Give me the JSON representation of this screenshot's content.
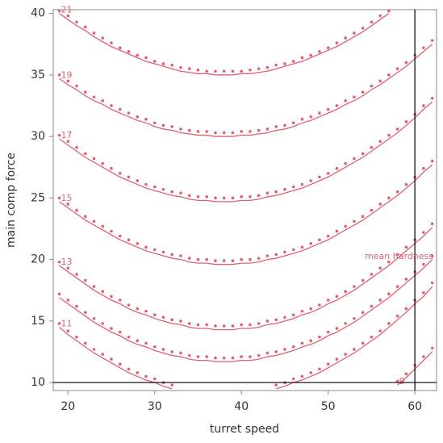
{
  "chart_data": {
    "type": "contour",
    "x_label": "turret speed",
    "y_label": "main comp force",
    "annotation": "mean hardness",
    "xlim": [
      18.3,
      62.5
    ],
    "ylim": [
      9.35,
      40.3
    ],
    "xticks": [
      20,
      30,
      40,
      50,
      60
    ],
    "yticks": [
      10,
      15,
      20,
      25,
      30,
      35,
      40
    ],
    "vlines": [
      60
    ],
    "hlines": [
      10
    ],
    "x": [
      19,
      20,
      21,
      22,
      23,
      24,
      25,
      26,
      27,
      28,
      29,
      30,
      31,
      32,
      33,
      34,
      35,
      36,
      37,
      38,
      39,
      40,
      41,
      42,
      43,
      44,
      45,
      46,
      47,
      48,
      49,
      50,
      51,
      52,
      53,
      54,
      55,
      56,
      57,
      58,
      59,
      60,
      61,
      62
    ],
    "series": [
      {
        "name": "21",
        "color": "#e06070",
        "values": [
          40.0,
          39.5,
          39.0,
          38.6,
          38.1,
          37.7,
          37.3,
          37.0,
          36.7,
          36.4,
          36.1,
          35.9,
          35.7,
          35.5,
          35.3,
          35.2,
          35.1,
          35.1,
          35.0,
          35.0,
          35.0,
          35.1,
          35.1,
          35.2,
          35.3,
          35.5,
          35.7,
          35.9,
          36.1,
          36.4,
          36.7,
          37.0,
          37.3,
          37.7,
          38.1,
          38.5,
          39.0,
          39.5,
          40.0,
          null,
          null,
          null,
          null,
          null
        ],
        "dot_values": [
          40.2,
          39.8,
          39.3,
          38.9,
          38.4,
          38.0,
          37.6,
          37.2,
          36.9,
          36.6,
          36.4,
          36.1,
          35.9,
          35.8,
          35.6,
          35.5,
          35.4,
          35.3,
          35.3,
          35.3,
          35.3,
          35.3,
          35.4,
          35.5,
          35.6,
          35.8,
          35.9,
          36.1,
          36.4,
          36.6,
          36.9,
          37.2,
          37.6,
          38.0,
          38.4,
          38.8,
          39.3,
          39.8,
          40.2,
          null,
          null,
          null,
          null,
          null
        ]
      },
      {
        "name": "19",
        "color": "#e06070",
        "values": [
          34.7,
          34.2,
          33.8,
          33.3,
          32.9,
          32.6,
          32.2,
          31.9,
          31.6,
          31.3,
          31.1,
          30.8,
          30.6,
          30.5,
          30.3,
          30.2,
          30.1,
          30.1,
          30.0,
          30.0,
          30.0,
          30.1,
          30.1,
          30.2,
          30.3,
          30.5,
          30.6,
          30.8,
          31.1,
          31.3,
          31.6,
          31.9,
          32.2,
          32.6,
          32.9,
          33.3,
          33.8,
          34.2,
          34.7,
          35.2,
          35.7,
          36.3,
          36.9,
          37.5
        ],
        "dot_values": [
          35.0,
          34.5,
          34.1,
          33.6,
          33.2,
          32.9,
          32.5,
          32.2,
          31.9,
          31.6,
          31.4,
          31.1,
          30.9,
          30.8,
          30.6,
          30.5,
          30.4,
          30.4,
          30.3,
          30.3,
          30.3,
          30.4,
          30.4,
          30.5,
          30.6,
          30.8,
          30.9,
          31.1,
          31.4,
          31.6,
          31.9,
          32.2,
          32.5,
          32.9,
          33.2,
          33.6,
          34.1,
          34.5,
          35.0,
          35.5,
          36.0,
          36.6,
          37.2,
          37.8
        ]
      },
      {
        "name": "17",
        "color": "#e06070",
        "values": [
          29.8,
          29.3,
          28.8,
          28.3,
          27.9,
          27.5,
          27.1,
          26.7,
          26.4,
          26.1,
          25.8,
          25.6,
          25.4,
          25.2,
          25.1,
          24.9,
          24.8,
          24.8,
          24.7,
          24.7,
          24.7,
          24.8,
          24.8,
          24.9,
          25.1,
          25.2,
          25.4,
          25.6,
          25.8,
          26.1,
          26.4,
          26.7,
          27.1,
          27.5,
          27.9,
          28.3,
          28.8,
          29.3,
          29.8,
          30.3,
          30.9,
          31.5,
          32.2,
          32.8
        ],
        "dot_values": [
          30.1,
          29.6,
          29.1,
          28.6,
          28.2,
          27.8,
          27.4,
          27.0,
          26.7,
          26.4,
          26.1,
          25.9,
          25.7,
          25.5,
          25.4,
          25.2,
          25.1,
          25.1,
          25.0,
          25.0,
          25.0,
          25.1,
          25.1,
          25.2,
          25.4,
          25.5,
          25.7,
          25.9,
          26.1,
          26.4,
          26.7,
          27.0,
          27.4,
          27.8,
          28.2,
          28.6,
          29.1,
          29.6,
          30.1,
          30.6,
          31.2,
          31.8,
          32.5,
          33.1
        ]
      },
      {
        "name": "15",
        "color": "#e06070",
        "values": [
          24.7,
          24.2,
          23.7,
          23.2,
          22.8,
          22.4,
          22.0,
          21.6,
          21.3,
          21.0,
          20.7,
          20.5,
          20.3,
          20.1,
          20.0,
          19.8,
          19.7,
          19.7,
          19.6,
          19.6,
          19.6,
          19.7,
          19.7,
          19.8,
          20.0,
          20.1,
          20.3,
          20.5,
          20.7,
          21.0,
          21.3,
          21.6,
          22.0,
          22.4,
          22.8,
          23.2,
          23.7,
          24.2,
          24.7,
          25.2,
          25.8,
          26.4,
          27.1,
          27.7
        ],
        "dot_values": [
          25.0,
          24.5,
          24.0,
          23.5,
          23.1,
          22.7,
          22.3,
          21.9,
          21.6,
          21.3,
          21.0,
          20.8,
          20.6,
          20.4,
          20.3,
          20.1,
          20.0,
          20.0,
          19.9,
          19.9,
          19.9,
          20.0,
          20.0,
          20.1,
          20.3,
          20.4,
          20.6,
          20.8,
          21.0,
          21.3,
          21.6,
          21.9,
          22.3,
          22.7,
          23.1,
          23.5,
          24.0,
          24.5,
          25.0,
          25.5,
          26.1,
          26.7,
          27.4,
          28.0
        ]
      },
      {
        "name": "13",
        "color": "#e06070",
        "values": [
          19.5,
          19.0,
          18.5,
          18.0,
          17.5,
          17.1,
          16.7,
          16.4,
          16.0,
          15.7,
          15.5,
          15.2,
          15.0,
          14.8,
          14.7,
          14.5,
          14.4,
          14.4,
          14.3,
          14.3,
          14.3,
          14.4,
          14.4,
          14.5,
          14.7,
          14.8,
          15.0,
          15.2,
          15.5,
          15.7,
          16.0,
          16.4,
          16.7,
          17.1,
          17.5,
          18.0,
          18.5,
          19.0,
          19.5,
          20.1,
          20.7,
          21.3,
          21.9,
          22.6
        ],
        "dot_values": [
          19.8,
          19.3,
          18.8,
          18.3,
          17.8,
          17.4,
          17.0,
          16.7,
          16.3,
          16.0,
          15.8,
          15.5,
          15.3,
          15.1,
          15.0,
          14.8,
          14.7,
          14.7,
          14.6,
          14.6,
          14.6,
          14.7,
          14.7,
          14.8,
          15.0,
          15.1,
          15.3,
          15.5,
          15.8,
          16.0,
          16.3,
          16.7,
          17.0,
          17.4,
          17.8,
          18.3,
          18.8,
          19.3,
          19.8,
          20.4,
          21.0,
          21.6,
          22.2,
          22.9
        ]
      },
      {
        "color": "#e06070",
        "values": [
          16.9,
          16.4,
          15.9,
          15.4,
          14.9,
          14.5,
          14.1,
          13.8,
          13.4,
          13.1,
          12.9,
          12.6,
          12.4,
          12.2,
          12.1,
          11.9,
          11.8,
          11.8,
          11.7,
          11.7,
          11.7,
          11.8,
          11.8,
          11.9,
          12.1,
          12.2,
          12.4,
          12.6,
          12.9,
          13.1,
          13.4,
          13.8,
          14.1,
          14.5,
          14.9,
          15.4,
          15.9,
          16.4,
          16.9,
          17.5,
          18.1,
          18.7,
          19.3,
          20.0
        ],
        "dot_values": [
          17.2,
          16.7,
          16.2,
          15.7,
          15.2,
          14.8,
          14.4,
          14.1,
          13.7,
          13.4,
          13.2,
          12.9,
          12.7,
          12.5,
          12.4,
          12.2,
          12.1,
          12.1,
          12.0,
          12.0,
          12.0,
          12.1,
          12.1,
          12.2,
          12.4,
          12.5,
          12.7,
          12.9,
          13.2,
          13.4,
          13.7,
          14.1,
          14.4,
          14.8,
          15.2,
          15.7,
          16.2,
          16.7,
          17.2,
          17.8,
          18.4,
          19.0,
          19.6,
          20.3
        ]
      },
      {
        "name": "11",
        "color": "#e06070",
        "values": [
          14.5,
          13.9,
          13.4,
          12.9,
          12.4,
          12.0,
          11.6,
          11.2,
          10.8,
          10.5,
          10.2,
          10.0,
          9.7,
          9.5,
          null,
          null,
          null,
          null,
          null,
          null,
          null,
          null,
          null,
          null,
          null,
          9.5,
          9.7,
          10.0,
          10.2,
          10.5,
          10.8,
          11.2,
          11.6,
          12.0,
          12.4,
          12.9,
          13.4,
          13.9,
          14.5,
          15.1,
          15.7,
          16.4,
          17.0,
          17.8
        ],
        "dot_values": [
          14.8,
          14.2,
          13.7,
          13.2,
          12.7,
          12.3,
          11.9,
          11.5,
          11.1,
          10.8,
          10.5,
          10.3,
          10.0,
          9.8,
          null,
          null,
          null,
          null,
          null,
          null,
          null,
          null,
          null,
          null,
          null,
          9.8,
          10.0,
          10.3,
          10.5,
          10.8,
          11.1,
          11.5,
          11.9,
          12.3,
          12.7,
          13.2,
          13.7,
          14.2,
          14.8,
          15.4,
          16.0,
          16.7,
          17.3,
          18.1
        ]
      },
      {
        "name": "9",
        "color": "#e06070",
        "values": [
          null,
          null,
          null,
          null,
          null,
          null,
          null,
          null,
          null,
          null,
          null,
          null,
          null,
          null,
          null,
          null,
          null,
          null,
          null,
          null,
          null,
          null,
          null,
          null,
          null,
          null,
          null,
          null,
          null,
          null,
          null,
          null,
          null,
          null,
          null,
          null,
          null,
          null,
          null,
          9.8,
          10.4,
          11.1,
          11.8,
          12.5
        ],
        "dot_values": [
          null,
          null,
          null,
          null,
          null,
          null,
          null,
          null,
          null,
          null,
          null,
          null,
          null,
          null,
          null,
          null,
          null,
          null,
          null,
          null,
          null,
          null,
          null,
          null,
          null,
          null,
          null,
          null,
          null,
          null,
          null,
          null,
          null,
          null,
          null,
          null,
          null,
          null,
          null,
          10.1,
          10.7,
          11.4,
          12.1,
          12.8
        ]
      }
    ]
  }
}
